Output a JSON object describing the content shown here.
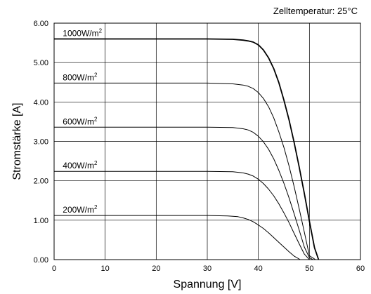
{
  "chart_data": {
    "type": "line",
    "title": "",
    "annotation": "Zelltemperatur: 25°C",
    "xlabel": "Spannung [V]",
    "ylabel": "Stromstärke [A]",
    "xlim": [
      0,
      60
    ],
    "ylim": [
      0,
      6
    ],
    "x_ticks": [
      0,
      10,
      20,
      30,
      40,
      50,
      60
    ],
    "x_tick_labels": [
      "0",
      "10",
      "20",
      "30",
      "40",
      "50",
      "60"
    ],
    "y_ticks": [
      0,
      1,
      2,
      3,
      4,
      5,
      6
    ],
    "y_tick_labels": [
      "0.00",
      "1.00",
      "2.00",
      "3.00",
      "4.00",
      "5.00",
      "6.00"
    ],
    "grid": true,
    "series": [
      {
        "name": "1000W/m",
        "unit_sup": "2",
        "label_x": 1,
        "x": [
          0,
          30,
          35,
          37,
          38,
          39,
          40,
          41,
          42,
          43,
          44,
          45,
          46,
          47,
          48,
          49,
          50,
          51,
          51.8
        ],
        "y": [
          5.6,
          5.6,
          5.59,
          5.57,
          5.55,
          5.52,
          5.45,
          5.32,
          5.12,
          4.85,
          4.5,
          4.05,
          3.55,
          2.98,
          2.35,
          1.68,
          0.98,
          0.3,
          0
        ]
      },
      {
        "name": "800W/m",
        "unit_sup": "2",
        "label_x": 1,
        "x": [
          0,
          30,
          35,
          37,
          38,
          39,
          40,
          41,
          42,
          43,
          44,
          45,
          46,
          47,
          48,
          49,
          50,
          51.2
        ],
        "y": [
          4.48,
          4.48,
          4.46,
          4.43,
          4.4,
          4.34,
          4.24,
          4.09,
          3.88,
          3.6,
          3.25,
          2.85,
          2.38,
          1.86,
          1.29,
          0.7,
          0.1,
          0
        ]
      },
      {
        "name": "600W/m",
        "unit_sup": "2",
        "label_x": 1,
        "x": [
          0,
          30,
          35,
          37,
          38,
          39,
          40,
          41,
          42,
          43,
          44,
          45,
          46,
          47,
          48,
          49,
          50,
          50.7
        ],
        "y": [
          3.36,
          3.36,
          3.35,
          3.32,
          3.29,
          3.23,
          3.13,
          2.99,
          2.8,
          2.56,
          2.27,
          1.94,
          1.57,
          1.17,
          0.75,
          0.32,
          0.05,
          0
        ]
      },
      {
        "name": "400W/m",
        "unit_sup": "2",
        "label_x": 1,
        "x": [
          0,
          30,
          35,
          37,
          38,
          39,
          40,
          41,
          42,
          43,
          44,
          45,
          46,
          47,
          48,
          49,
          50
        ],
        "y": [
          2.24,
          2.24,
          2.23,
          2.2,
          2.17,
          2.12,
          2.04,
          1.93,
          1.79,
          1.62,
          1.42,
          1.19,
          0.94,
          0.67,
          0.4,
          0.14,
          0
        ]
      },
      {
        "name": "200W/m",
        "unit_sup": "2",
        "label_x": 1,
        "x": [
          0,
          30,
          34,
          36,
          37,
          38,
          39,
          40,
          41,
          42,
          43,
          44,
          45,
          46,
          47,
          48.2
        ],
        "y": [
          1.12,
          1.12,
          1.11,
          1.09,
          1.06,
          1.02,
          0.96,
          0.88,
          0.79,
          0.68,
          0.56,
          0.44,
          0.32,
          0.2,
          0.09,
          0
        ]
      }
    ]
  }
}
